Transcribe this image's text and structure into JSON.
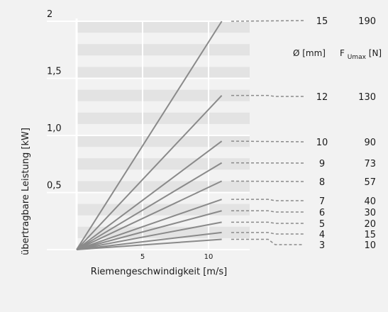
{
  "chart_data": {
    "type": "line",
    "xlabel": "Riemengeschwindigkeit [m/s]",
    "ylabel": "übertragbare Leistung [kW]",
    "xlim": [
      0,
      12
    ],
    "ylim": [
      0,
      2.0
    ],
    "x_ticks": [
      "5",
      "10"
    ],
    "y_ticks": [
      "0,5",
      "1,0",
      "1,5",
      "2"
    ],
    "grid": true,
    "table_headers": {
      "diameter": "Ø [mm]",
      "force_main": "F",
      "force_sub": "Umax",
      "force_unit": "[N]"
    },
    "series": [
      {
        "diameter": "15",
        "fumax": "190",
        "x": [
          0,
          11
        ],
        "y": [
          0,
          2.0
        ]
      },
      {
        "diameter": "12",
        "fumax": "130",
        "x": [
          0,
          11
        ],
        "y": [
          0,
          1.35
        ]
      },
      {
        "diameter": "10",
        "fumax": "90",
        "x": [
          0,
          11
        ],
        "y": [
          0,
          0.95
        ]
      },
      {
        "diameter": "9",
        "fumax": "73",
        "x": [
          0,
          11
        ],
        "y": [
          0,
          0.76
        ]
      },
      {
        "diameter": "8",
        "fumax": "57",
        "x": [
          0,
          11
        ],
        "y": [
          0,
          0.6
        ]
      },
      {
        "diameter": "7",
        "fumax": "40",
        "x": [
          0,
          11
        ],
        "y": [
          0,
          0.44
        ]
      },
      {
        "diameter": "6",
        "fumax": "30",
        "x": [
          0,
          11
        ],
        "y": [
          0,
          0.34
        ]
      },
      {
        "diameter": "5",
        "fumax": "20",
        "x": [
          0,
          11
        ],
        "y": [
          0,
          0.24
        ]
      },
      {
        "diameter": "4",
        "fumax": "15",
        "x": [
          0,
          11
        ],
        "y": [
          0,
          0.15
        ]
      },
      {
        "diameter": "3",
        "fumax": "10",
        "x": [
          0,
          11
        ],
        "y": [
          0,
          0.09
        ]
      }
    ],
    "colors": {
      "line": "#8a8a8a",
      "grid_dark": "#e3e3e3",
      "grid_light": "#f2f2f2",
      "axis": "#ffffff",
      "leader": "#8a8a8a"
    }
  }
}
